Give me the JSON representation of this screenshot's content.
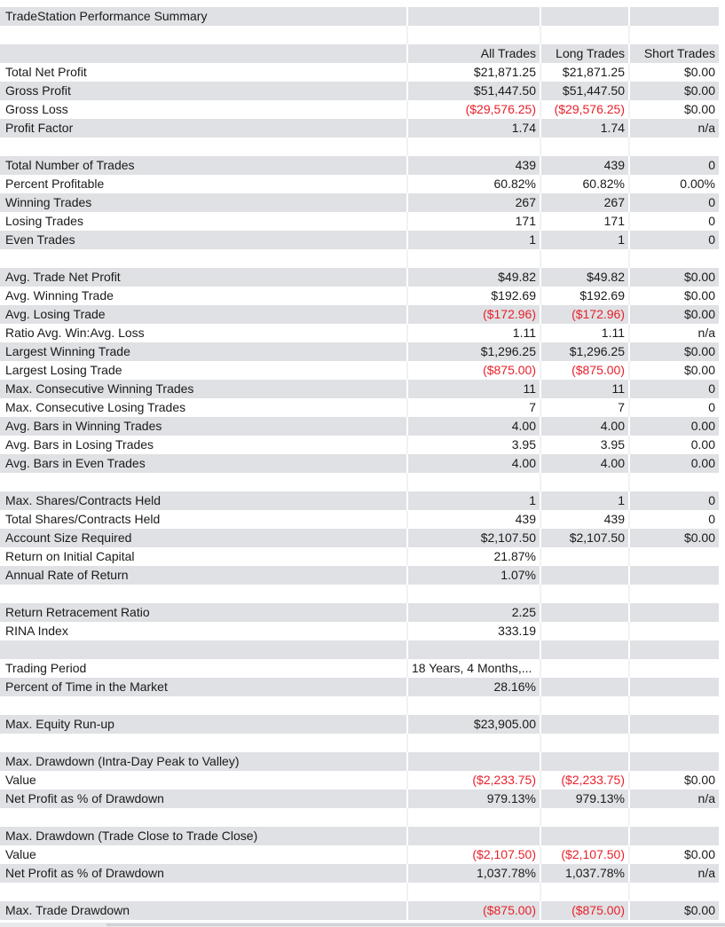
{
  "title": "TradeStation Performance Summary",
  "headers": [
    "",
    "All Trades",
    "Long Trades",
    "Short Trades"
  ],
  "rows": [
    {
      "t": "title"
    },
    {
      "t": "blank"
    },
    {
      "t": "header"
    },
    {
      "t": "data",
      "c": [
        "Total Net Profit",
        "$21,871.25",
        "$21,871.25",
        "$0.00"
      ]
    },
    {
      "t": "data",
      "c": [
        "Gross Profit",
        "$51,447.50",
        "$51,447.50",
        "$0.00"
      ]
    },
    {
      "t": "data",
      "c": [
        "Gross Loss",
        "($29,576.25)",
        "($29,576.25)",
        "$0.00"
      ]
    },
    {
      "t": "data",
      "c": [
        "Profit Factor",
        "1.74",
        "1.74",
        "n/a"
      ]
    },
    {
      "t": "blank"
    },
    {
      "t": "data",
      "c": [
        "Total Number of Trades",
        "439",
        "439",
        "0"
      ]
    },
    {
      "t": "data",
      "c": [
        "Percent Profitable",
        "60.82%",
        "60.82%",
        "0.00%"
      ]
    },
    {
      "t": "data",
      "c": [
        "Winning Trades",
        "267",
        "267",
        "0"
      ]
    },
    {
      "t": "data",
      "c": [
        "Losing Trades",
        "171",
        "171",
        "0"
      ]
    },
    {
      "t": "data",
      "c": [
        "Even Trades",
        "1",
        "1",
        "0"
      ]
    },
    {
      "t": "blank"
    },
    {
      "t": "data",
      "c": [
        "Avg. Trade Net Profit",
        "$49.82",
        "$49.82",
        "$0.00"
      ]
    },
    {
      "t": "data",
      "c": [
        "Avg. Winning Trade",
        "$192.69",
        "$192.69",
        "$0.00"
      ]
    },
    {
      "t": "data",
      "c": [
        "Avg. Losing Trade",
        "($172.96)",
        "($172.96)",
        "$0.00"
      ]
    },
    {
      "t": "data",
      "c": [
        "Ratio Avg. Win:Avg. Loss",
        "1.11",
        "1.11",
        "n/a"
      ]
    },
    {
      "t": "data",
      "c": [
        "Largest Winning Trade",
        "$1,296.25",
        "$1,296.25",
        "$0.00"
      ]
    },
    {
      "t": "data",
      "c": [
        "Largest Losing Trade",
        "($875.00)",
        "($875.00)",
        "$0.00"
      ]
    },
    {
      "t": "data",
      "c": [
        "Max. Consecutive Winning Trades",
        "11",
        "11",
        "0"
      ]
    },
    {
      "t": "data",
      "c": [
        "Max. Consecutive Losing Trades",
        "7",
        "7",
        "0"
      ]
    },
    {
      "t": "data",
      "c": [
        "Avg. Bars in Winning Trades",
        "4.00",
        "4.00",
        "0.00"
      ]
    },
    {
      "t": "data",
      "c": [
        "Avg. Bars in Losing Trades",
        "3.95",
        "3.95",
        "0.00"
      ]
    },
    {
      "t": "data",
      "c": [
        "Avg. Bars in Even Trades",
        "4.00",
        "4.00",
        "0.00"
      ]
    },
    {
      "t": "blank"
    },
    {
      "t": "data",
      "c": [
        "Max. Shares/Contracts Held",
        "1",
        "1",
        "0"
      ]
    },
    {
      "t": "data",
      "c": [
        "Total Shares/Contracts Held",
        "439",
        "439",
        "0"
      ]
    },
    {
      "t": "data",
      "c": [
        "Account Size Required",
        "$2,107.50",
        "$2,107.50",
        "$0.00"
      ]
    },
    {
      "t": "data",
      "c": [
        "Return on Initial Capital",
        "21.87%",
        "",
        ""
      ]
    },
    {
      "t": "data",
      "c": [
        "Annual Rate of Return",
        "1.07%",
        "",
        ""
      ]
    },
    {
      "t": "blank"
    },
    {
      "t": "data",
      "c": [
        "Return Retracement Ratio",
        "2.25",
        "",
        ""
      ]
    },
    {
      "t": "data",
      "c": [
        "RINA Index",
        "333.19",
        "",
        ""
      ]
    },
    {
      "t": "blank"
    },
    {
      "t": "data",
      "c": [
        "Trading Period",
        "18 Years, 4 Months,...",
        "",
        ""
      ],
      "left1": true
    },
    {
      "t": "data",
      "c": [
        "Percent of Time in the Market",
        "28.16%",
        "",
        ""
      ]
    },
    {
      "t": "blank"
    },
    {
      "t": "data",
      "c": [
        "Max. Equity Run-up",
        "$23,905.00",
        "",
        ""
      ]
    },
    {
      "t": "blank"
    },
    {
      "t": "data",
      "c": [
        "Max. Drawdown (Intra-Day Peak to Valley)",
        "",
        "",
        ""
      ]
    },
    {
      "t": "data",
      "c": [
        "Value",
        "($2,233.75)",
        "($2,233.75)",
        "$0.00"
      ]
    },
    {
      "t": "data",
      "c": [
        "Net Profit as % of Drawdown",
        "979.13%",
        "979.13%",
        "n/a"
      ]
    },
    {
      "t": "blank"
    },
    {
      "t": "data",
      "c": [
        "Max. Drawdown (Trade Close to Trade Close)",
        "",
        "",
        ""
      ]
    },
    {
      "t": "data",
      "c": [
        "Value",
        "($2,107.50)",
        "($2,107.50)",
        "$0.00"
      ]
    },
    {
      "t": "data",
      "c": [
        "Net Profit as % of Drawdown",
        "1,037.78%",
        "1,037.78%",
        "n/a"
      ]
    },
    {
      "t": "blank"
    },
    {
      "t": "data",
      "c": [
        "Max. Trade Drawdown",
        "($875.00)",
        "($875.00)",
        "$0.00"
      ]
    }
  ],
  "negative_color": "#e8202a"
}
